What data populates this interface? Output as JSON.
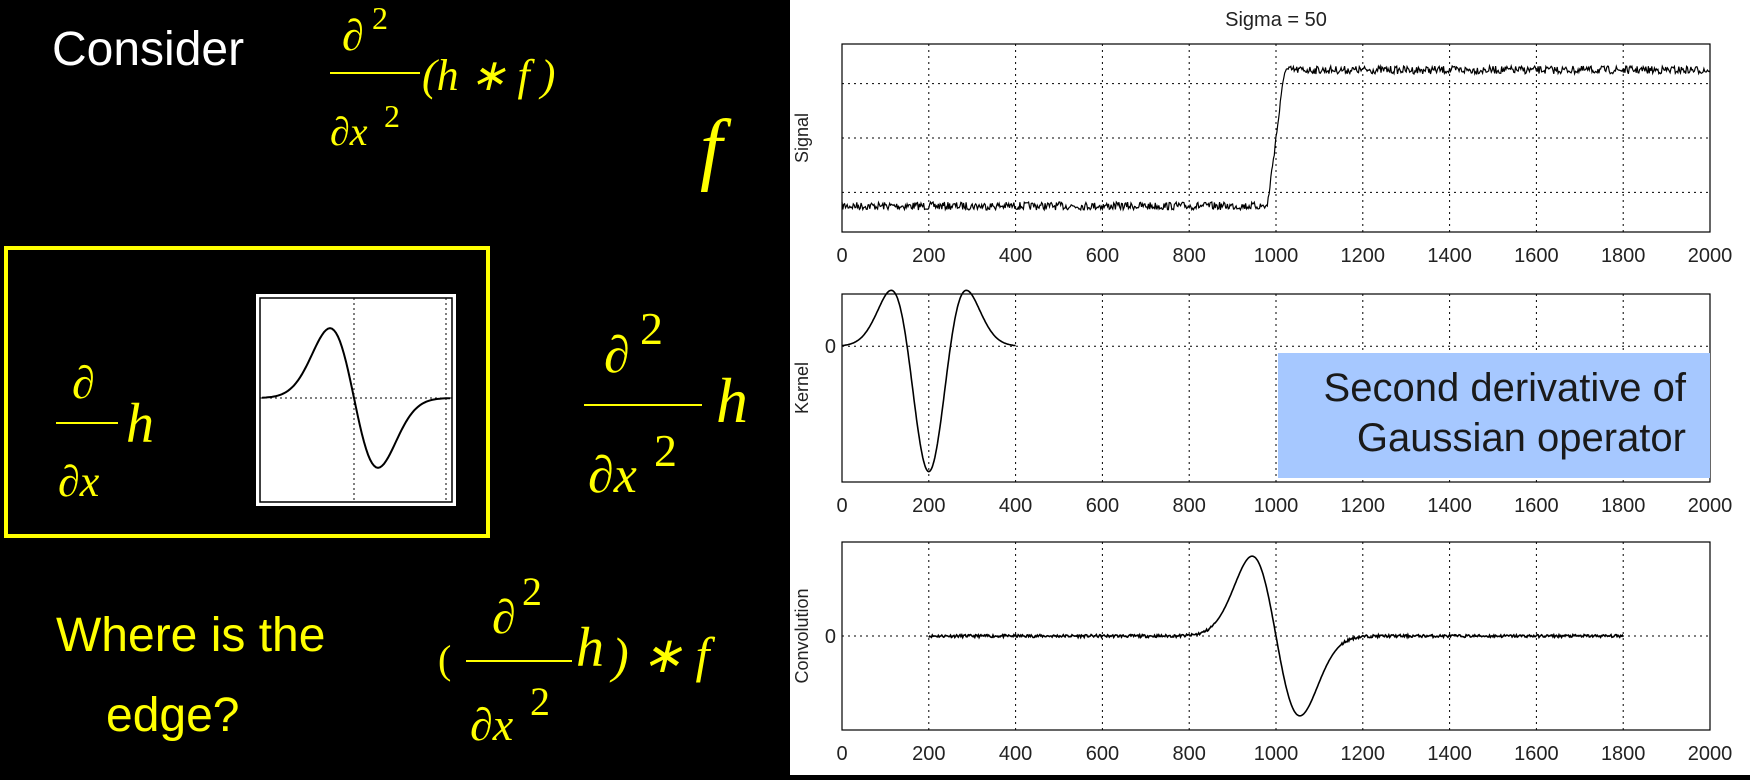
{
  "left_panel": {
    "consider_label": "Consider",
    "where_label_line1": "Where is the",
    "where_label_line2": "edge?",
    "expr_top": {
      "partial": "∂",
      "power": "2",
      "denominator": "∂x",
      "denominator_power": "2",
      "body": "(h ∗ f )"
    },
    "f_symbol": "f",
    "first_derivative": {
      "numerator": "∂",
      "denominator": "∂x",
      "operand": "h"
    },
    "second_derivative": {
      "numerator": "∂",
      "power": "2",
      "denominator": "∂x",
      "denominator_power": "2",
      "operand": "h"
    },
    "expr_bottom": {
      "open": "(",
      "numerator": "∂",
      "power": "2",
      "denominator": "∂x",
      "denominator_power": "2",
      "operand": "h",
      "close": ") ∗ f"
    }
  },
  "callout": {
    "line1": "Second derivative of",
    "line2": "Gaussian operator"
  },
  "colors": {
    "yellow": "#ffff00",
    "callout_bg": "#a6c8ff"
  },
  "chart_data": [
    {
      "type": "line",
      "title": "Sigma = 50",
      "ylabel": "Signal",
      "xlabel": "",
      "xlim": [
        0,
        2000
      ],
      "xticks": [
        "0",
        "200",
        "400",
        "600",
        "800",
        "1000",
        "1200",
        "1400",
        "1600",
        "1800",
        "2000"
      ],
      "ylim": [
        -0.2,
        1.2
      ],
      "yticks": [],
      "grid": true,
      "series": [
        {
          "name": "signal",
          "x": [
            0,
            980,
            1000,
            1020,
            2000
          ],
          "values": [
            0,
            0,
            0.55,
            1,
            1
          ],
          "noisy": true
        }
      ]
    },
    {
      "type": "line",
      "ylabel": "Kernel",
      "xlim": [
        0,
        2000
      ],
      "xticks": [
        "0",
        "200",
        "400",
        "600",
        "800",
        "1000",
        "1200",
        "1400",
        "1600",
        "1800",
        "2000"
      ],
      "ylim": [
        -1.3,
        0.5
      ],
      "yticks": [
        "0"
      ],
      "grid": true,
      "series": [
        {
          "name": "second derivative of Gaussian",
          "x_range": [
            0,
            400
          ],
          "center": 200,
          "sigma": 50
        }
      ]
    },
    {
      "type": "line",
      "ylabel": "Convolution",
      "xlim": [
        0,
        2000
      ],
      "xticks": [
        "0",
        "200",
        "400",
        "600",
        "800",
        "1000",
        "1200",
        "1400",
        "1600",
        "1800",
        "2000"
      ],
      "ylim": [
        -1.0,
        1.0
      ],
      "yticks": [
        "0"
      ],
      "grid": true,
      "series": [
        {
          "name": "convolution",
          "x_range": [
            200,
            1800
          ],
          "peak_x": 950,
          "trough_x": 1050
        }
      ]
    }
  ]
}
